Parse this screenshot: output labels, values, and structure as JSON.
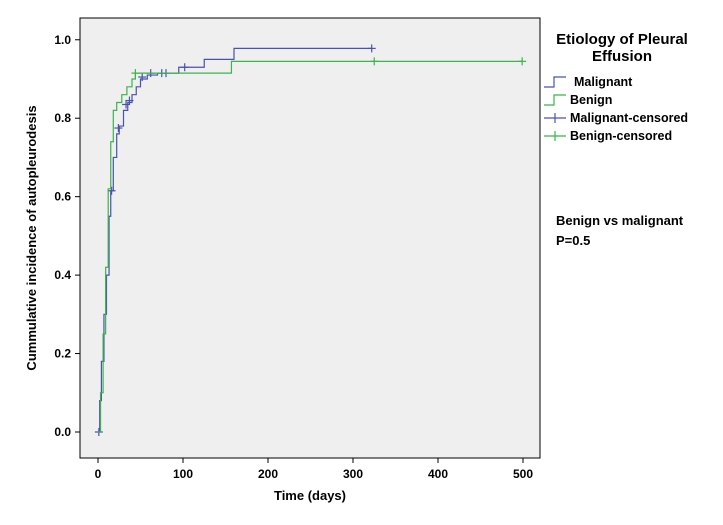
{
  "chart_data": {
    "type": "line",
    "subtype": "kaplan-meier step (cumulative incidence)",
    "xlabel": "Time (days)",
    "ylabel": "Cummulative incidence of autopleurodesis",
    "xlim": [
      0,
      520
    ],
    "ylim": [
      0,
      1.03
    ],
    "xticks": [
      0,
      100,
      200,
      300,
      400,
      500
    ],
    "yticks": [
      0.0,
      0.2,
      0.4,
      0.6,
      0.8,
      1.0
    ],
    "xtick_labels": [
      "0",
      "100",
      "200",
      "300",
      "400",
      "500"
    ],
    "ytick_labels": [
      "0.0",
      "0.2",
      "0.4",
      "0.6",
      "0.8",
      "1.0"
    ],
    "grid": false,
    "legend": {
      "title_line1": "Etiology of Pleural",
      "title_line2": "Effusion",
      "placement": "right",
      "entries": [
        "Malignant",
        "Benign",
        "Malignant-censored",
        "Benign-censored"
      ]
    },
    "annotation_line1": "Benign vs malignant",
    "annotation_line2": "P=0.5",
    "series": [
      {
        "name": "Malignant",
        "color": "#4a52b0",
        "steps": [
          [
            0,
            0
          ],
          [
            2,
            0.08
          ],
          [
            4,
            0.18
          ],
          [
            7,
            0.3
          ],
          [
            10,
            0.4
          ],
          [
            13,
            0.55
          ],
          [
            15,
            0.615
          ],
          [
            18,
            0.7
          ],
          [
            22,
            0.76
          ],
          [
            25,
            0.78
          ],
          [
            30,
            0.82
          ],
          [
            35,
            0.84
          ],
          [
            40,
            0.86
          ],
          [
            45,
            0.88
          ],
          [
            50,
            0.9
          ],
          [
            58,
            0.91
          ],
          [
            70,
            0.915
          ],
          [
            95,
            0.93
          ],
          [
            125,
            0.95
          ],
          [
            160,
            0.978
          ],
          [
            322,
            0.978
          ]
        ],
        "censored": [
          [
            1,
            0
          ],
          [
            16,
            0.615
          ],
          [
            24,
            0.775
          ],
          [
            33,
            0.835
          ],
          [
            37,
            0.845
          ],
          [
            52,
            0.905
          ],
          [
            62,
            0.915
          ],
          [
            75,
            0.915
          ],
          [
            80,
            0.915
          ],
          [
            102,
            0.93
          ],
          [
            322,
            0.978
          ]
        ]
      },
      {
        "name": "Benign",
        "color": "#39b54a",
        "steps": [
          [
            0,
            0
          ],
          [
            3,
            0.1
          ],
          [
            6,
            0.25
          ],
          [
            9,
            0.42
          ],
          [
            12,
            0.62
          ],
          [
            15,
            0.74
          ],
          [
            18,
            0.82
          ],
          [
            22,
            0.84
          ],
          [
            28,
            0.86
          ],
          [
            34,
            0.88
          ],
          [
            40,
            0.9
          ],
          [
            44,
            0.915
          ],
          [
            155,
            0.915
          ],
          [
            157,
            0.945
          ],
          [
            500,
            0.945
          ]
        ],
        "censored": [
          [
            44,
            0.915
          ],
          [
            325,
            0.945
          ],
          [
            499,
            0.945
          ]
        ]
      }
    ]
  }
}
